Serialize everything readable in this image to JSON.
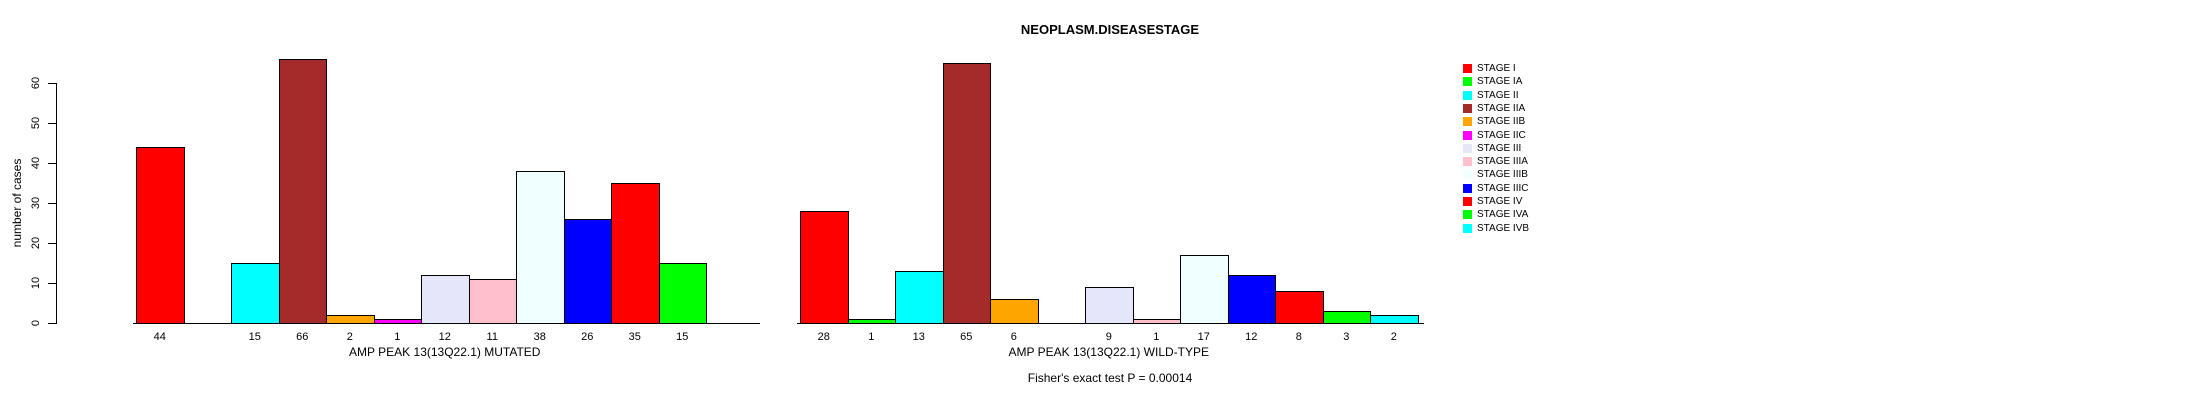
{
  "chart_data": {
    "type": "bar",
    "title": "NEOPLASM.DISEASESTAGE",
    "ylabel": "number of cases",
    "xlabel": "",
    "yticks": [
      0,
      10,
      20,
      30,
      40,
      50,
      60
    ],
    "ylim": [
      0,
      66
    ],
    "grid": false,
    "legend_position": "right",
    "categories": [
      "STAGE I",
      "STAGE IA",
      "STAGE II",
      "STAGE IIA",
      "STAGE IIB",
      "STAGE IIC",
      "STAGE III",
      "STAGE IIIA",
      "STAGE IIIB",
      "STAGE IIIC",
      "STAGE IV",
      "STAGE IVA",
      "STAGE IVB"
    ],
    "colors": [
      "#FF0000",
      "#00FF00",
      "#00FFFF",
      "#A52A2A",
      "#FFA500",
      "#FF00FF",
      "#E6E6FA",
      "#FFC0CB",
      "#F0FFFF",
      "#0000FF",
      "#FF0000",
      "#00FF00",
      "#00FFFF"
    ],
    "series": [
      {
        "name": "AMP PEAK 13(13Q22.1) MUTATED",
        "values": [
          44,
          0,
          15,
          66,
          2,
          1,
          12,
          11,
          38,
          26,
          35,
          15,
          0
        ]
      },
      {
        "name": "AMP PEAK 13(13Q22.1) WILD-TYPE",
        "values": [
          28,
          1,
          13,
          65,
          6,
          0,
          9,
          1,
          17,
          12,
          8,
          3,
          2
        ]
      }
    ],
    "hide_zero_bars": true,
    "annotation": "Fisher's exact test P = 0.00014"
  }
}
